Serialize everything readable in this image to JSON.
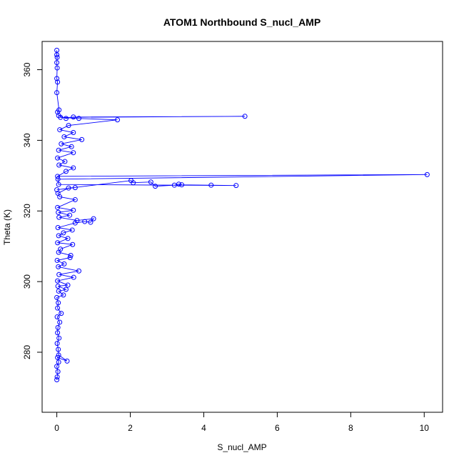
{
  "chart_data": {
    "type": "line",
    "title": "ATOM1 Northbound S_nucl_AMP",
    "xlabel": "S_nucl_AMP",
    "ylabel": "Theta (K)",
    "xlim": [
      -0.4,
      10.5
    ],
    "ylim": [
      263,
      368
    ],
    "x_ticks": [
      0,
      2,
      4,
      6,
      8,
      10
    ],
    "y_ticks": [
      280,
      300,
      320,
      340,
      360
    ],
    "grid": false,
    "colors": {
      "series": "#0000ff",
      "axis": "#000000",
      "background": "#ffffff"
    },
    "series": [
      {
        "marker": "open-circle",
        "points": [
          [
            0.0,
            272.2
          ],
          [
            0.01,
            273.0
          ],
          [
            0.03,
            274.5
          ],
          [
            0.0,
            276.0
          ],
          [
            0.05,
            277.2
          ],
          [
            0.02,
            278.5
          ],
          [
            0.28,
            277.5
          ],
          [
            0.05,
            279.2
          ],
          [
            0.04,
            280.8
          ],
          [
            0.01,
            282.5
          ],
          [
            0.06,
            284.0
          ],
          [
            0.02,
            285.5
          ],
          [
            0.03,
            287.0
          ],
          [
            0.08,
            288.5
          ],
          [
            0.01,
            290.0
          ],
          [
            0.12,
            291.0
          ],
          [
            0.02,
            292.5
          ],
          [
            0.04,
            294.0
          ],
          [
            0.0,
            295.5
          ],
          [
            0.18,
            296.2
          ],
          [
            0.05,
            297.3
          ],
          [
            0.25,
            297.8
          ],
          [
            0.03,
            298.7
          ],
          [
            0.3,
            299.0
          ],
          [
            0.02,
            300.2
          ],
          [
            0.46,
            301.2
          ],
          [
            0.06,
            302.0
          ],
          [
            0.6,
            303.0
          ],
          [
            0.04,
            304.2
          ],
          [
            0.2,
            305.0
          ],
          [
            0.01,
            306.0
          ],
          [
            0.36,
            306.8
          ],
          [
            0.38,
            307.4
          ],
          [
            0.05,
            308.3
          ],
          [
            0.1,
            309.2
          ],
          [
            0.43,
            310.5
          ],
          [
            0.02,
            311.0
          ],
          [
            0.3,
            312.2
          ],
          [
            0.05,
            313.0
          ],
          [
            0.18,
            313.8
          ],
          [
            0.42,
            314.6
          ],
          [
            0.03,
            315.3
          ],
          [
            0.5,
            316.6
          ],
          [
            0.76,
            317.0
          ],
          [
            0.92,
            316.8
          ],
          [
            1.0,
            317.8
          ],
          [
            0.55,
            317.3
          ],
          [
            0.06,
            318.2
          ],
          [
            0.35,
            318.8
          ],
          [
            0.04,
            319.6
          ],
          [
            0.45,
            320.2
          ],
          [
            0.02,
            321.0
          ],
          [
            0.5,
            323.2
          ],
          [
            0.08,
            324.0
          ],
          [
            0.03,
            325.0
          ],
          [
            0.32,
            326.5
          ],
          [
            0.5,
            326.6
          ],
          [
            0.0,
            326.0
          ],
          [
            2.02,
            328.6
          ],
          [
            2.08,
            328.0
          ],
          [
            2.56,
            328.2
          ],
          [
            2.68,
            327.0
          ],
          [
            3.2,
            327.3
          ],
          [
            3.32,
            327.6
          ],
          [
            3.4,
            327.4
          ],
          [
            4.2,
            327.3
          ],
          [
            4.88,
            327.2
          ],
          [
            0.05,
            327.5
          ],
          [
            0.03,
            329.0
          ],
          [
            10.08,
            330.3
          ],
          [
            0.02,
            329.8
          ],
          [
            0.25,
            331.2
          ],
          [
            0.45,
            332.2
          ],
          [
            0.06,
            333.0
          ],
          [
            0.22,
            334.0
          ],
          [
            0.02,
            335.0
          ],
          [
            0.45,
            336.5
          ],
          [
            0.05,
            337.2
          ],
          [
            0.4,
            338.2
          ],
          [
            0.12,
            339.0
          ],
          [
            0.68,
            340.2
          ],
          [
            0.2,
            341.0
          ],
          [
            0.45,
            342.2
          ],
          [
            0.08,
            343.0
          ],
          [
            0.32,
            344.2
          ],
          [
            1.65,
            345.8
          ],
          [
            0.6,
            346.2
          ],
          [
            0.1,
            346.5
          ],
          [
            5.12,
            346.8
          ],
          [
            0.45,
            346.6
          ],
          [
            0.25,
            346.2
          ],
          [
            0.05,
            347.0
          ],
          [
            0.02,
            348.0
          ],
          [
            0.06,
            348.6
          ],
          [
            0.0,
            353.5
          ],
          [
            0.02,
            356.5
          ],
          [
            0.0,
            357.5
          ],
          [
            0.01,
            360.5
          ],
          [
            0.0,
            362.0
          ],
          [
            0.01,
            363.5
          ],
          [
            0.0,
            364.2
          ],
          [
            0.0,
            365.5
          ]
        ]
      }
    ]
  }
}
